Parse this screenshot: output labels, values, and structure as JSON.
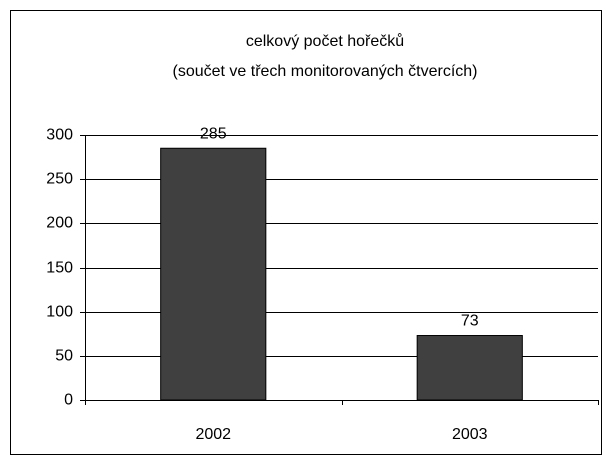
{
  "chart_data": {
    "type": "bar",
    "title": "celkový počet hořečků",
    "subtitle": "(součet ve třech monitorovaných čtvercích)",
    "categories": [
      "2002",
      "2003"
    ],
    "values": [
      285,
      73
    ],
    "color": "#404040",
    "ylim": [
      0,
      300
    ],
    "yticks": [
      0,
      50,
      100,
      150,
      200,
      250,
      300
    ],
    "grid": true
  }
}
